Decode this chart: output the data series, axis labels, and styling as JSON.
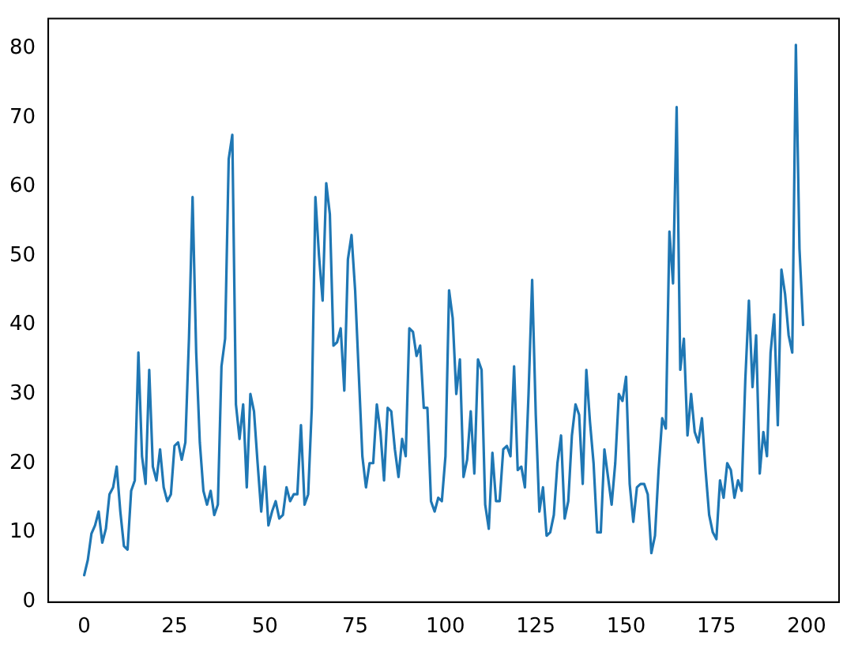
{
  "chart_data": {
    "type": "line",
    "x": [
      0,
      1,
      2,
      3,
      4,
      5,
      6,
      7,
      8,
      9,
      10,
      11,
      12,
      13,
      14,
      15,
      16,
      17,
      18,
      19,
      20,
      21,
      22,
      23,
      24,
      25,
      26,
      27,
      28,
      29,
      30,
      31,
      32,
      33,
      34,
      35,
      36,
      37,
      38,
      39,
      40,
      41,
      42,
      43,
      44,
      45,
      46,
      47,
      48,
      49,
      50,
      51,
      52,
      53,
      54,
      55,
      56,
      57,
      58,
      59,
      60,
      61,
      62,
      63,
      64,
      65,
      66,
      67,
      68,
      69,
      70,
      71,
      72,
      73,
      74,
      75,
      76,
      77,
      78,
      79,
      80,
      81,
      82,
      83,
      84,
      85,
      86,
      87,
      88,
      89,
      90,
      91,
      92,
      93,
      94,
      95,
      96,
      97,
      98,
      99,
      100,
      101,
      102,
      103,
      104,
      105,
      106,
      107,
      108,
      109,
      110,
      111,
      112,
      113,
      114,
      115,
      116,
      117,
      118,
      119,
      120,
      121,
      122,
      123,
      124,
      125,
      126,
      127,
      128,
      129,
      130,
      131,
      132,
      133,
      134,
      135,
      136,
      137,
      138,
      139,
      140,
      141,
      142,
      143,
      144,
      145,
      146,
      147,
      148,
      149,
      150,
      151,
      152,
      153,
      154,
      155,
      156,
      157,
      158,
      159,
      160,
      161,
      162,
      163,
      164,
      165,
      166,
      167,
      168,
      169,
      170,
      171,
      172,
      173,
      174,
      175,
      176,
      177,
      178,
      179,
      180,
      181,
      182,
      183,
      184,
      185,
      186,
      187,
      188,
      189,
      190,
      191,
      192,
      193,
      194,
      195,
      196,
      197,
      198,
      199
    ],
    "series": [
      {
        "color": "#1f77b4",
        "values": [
          3.8,
          6,
          9.8,
          11,
          13,
          8.5,
          10.5,
          15.5,
          16.5,
          19.5,
          13,
          8,
          7.5,
          16,
          17.5,
          36,
          21,
          17,
          33.5,
          19.5,
          17.5,
          22,
          16.5,
          14.5,
          15.5,
          22.5,
          23,
          20.5,
          23,
          38,
          58.5,
          36,
          23,
          16,
          14,
          16,
          12.5,
          14,
          34,
          38,
          64,
          67.5,
          28.5,
          23.5,
          28.5,
          16.5,
          30,
          27.5,
          20,
          13,
          19.5,
          11,
          13,
          14.5,
          12,
          12.5,
          16.5,
          14.5,
          15.5,
          15.5,
          25.5,
          14,
          15.5,
          28,
          58.5,
          50,
          43.5,
          60.5,
          56,
          37,
          37.5,
          39.5,
          30.5,
          49.5,
          53,
          45,
          33,
          21,
          16.5,
          20,
          20,
          28.5,
          24.5,
          17.5,
          28,
          27.5,
          22,
          18,
          23.5,
          21,
          39.5,
          39,
          35.5,
          37,
          28,
          28,
          14.5,
          13,
          15,
          14.5,
          21,
          45,
          41,
          30,
          35,
          18,
          20.5,
          27.5,
          18.5,
          35,
          33.5,
          14,
          10.5,
          21.5,
          14.5,
          14.5,
          22,
          22.5,
          21,
          34,
          19,
          19.5,
          16.5,
          30,
          46.5,
          27,
          13,
          16.5,
          9.5,
          10,
          12.5,
          20,
          24,
          12,
          14.5,
          24,
          28.5,
          27,
          17,
          33.5,
          26,
          20,
          10,
          10,
          22,
          18,
          14,
          20,
          30,
          29,
          32.5,
          17,
          11.5,
          16.5,
          17,
          17,
          15.5,
          7,
          9.5,
          19,
          26.5,
          25,
          53.5,
          46,
          71.5,
          33.5,
          38,
          24,
          30,
          24.5,
          23,
          26.5,
          19,
          12.5,
          10,
          9,
          17.5,
          15,
          20,
          19,
          15,
          17.5,
          16,
          32,
          43.5,
          31,
          38.5,
          18.5,
          24.5,
          21,
          36,
          41.5,
          25.5,
          48,
          44.5,
          38.5,
          36,
          80.5,
          51,
          40
        ]
      }
    ],
    "xlim": [
      -9.95,
      208.95
    ],
    "ylim": [
      -0.1,
      84.3
    ],
    "xticks": [
      0,
      25,
      50,
      75,
      100,
      125,
      150,
      175,
      200
    ],
    "yticks": [
      0,
      10,
      20,
      30,
      40,
      50,
      60,
      70,
      80
    ],
    "grid": false,
    "legend": false
  }
}
